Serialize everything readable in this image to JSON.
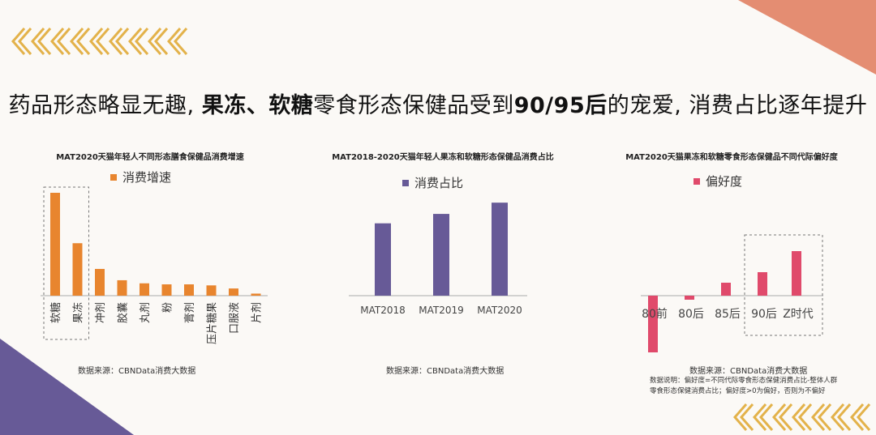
{
  "headline": {
    "p1": "药品形态略显无趣, ",
    "b1": "果冻、软糖",
    "p2": "零食形态保健品受到",
    "b2": "90/95后",
    "p3": "的宠爱, 消费占比逐年提升"
  },
  "colors": {
    "orange": "#e8852e",
    "purple": "#675a97",
    "pink": "#e04a6b",
    "salmon": "#e48d72",
    "gold": "#e3b24a"
  },
  "chart_data": [
    {
      "type": "bar",
      "title": "MAT2020天猫年轻人不同形态膳食保健品消费增速",
      "categories": [
        "软糖",
        "果冻",
        "冲剂",
        "胶囊",
        "丸剂",
        "粉",
        "膏剂",
        "压片糖果",
        "口服液",
        "片剂"
      ],
      "series": [
        {
          "name": "消费增速",
          "values": [
            100,
            51,
            26,
            15,
            12,
            11,
            11,
            10,
            7,
            2
          ]
        }
      ],
      "highlight": [
        "软糖",
        "果冻"
      ],
      "legend": "top-left",
      "grid": false,
      "source": "数据来源：CBNData消费大数据"
    },
    {
      "type": "bar",
      "title": "MAT2018-2020天猫年轻人果冻和软糖形态保健品消费占比",
      "categories": [
        "MAT2018",
        "MAT2019",
        "MAT2020"
      ],
      "series": [
        {
          "name": "消费占比",
          "values": [
            77,
            87,
            99
          ]
        }
      ],
      "legend": "top-left",
      "grid": false,
      "source": "数据来源：CBNData消费大数据"
    },
    {
      "type": "bar",
      "title": "MAT2020天猫果冻和软糖零食形态保健品不同代际偏好度",
      "categories": [
        "80前",
        "80后",
        "85后",
        "90后",
        "Z时代"
      ],
      "series": [
        {
          "name": "偏好度",
          "values": [
            -70,
            -5,
            16,
            29,
            55
          ]
        }
      ],
      "highlight": [
        "90后",
        "Z时代"
      ],
      "legend": "top-left",
      "grid": false,
      "source": "数据来源：CBNData消费大数据",
      "note": [
        "数据说明：偏好度=不同代际零食形态保健消费占比-整体人群",
        "零食形态保健消费占比；偏好度>0为偏好，否则为不偏好"
      ]
    }
  ]
}
